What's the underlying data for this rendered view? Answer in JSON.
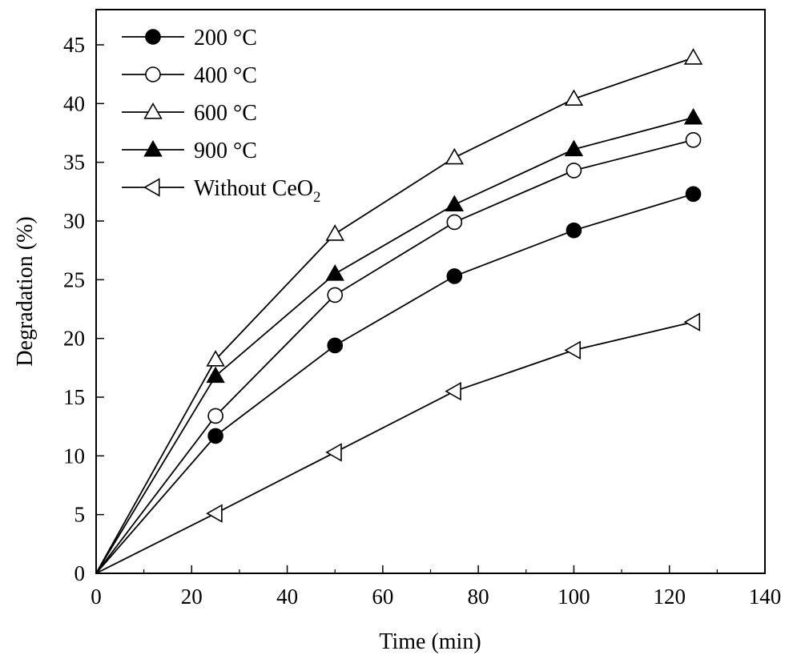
{
  "chart_data": {
    "type": "line",
    "xlabel": "Time (min)",
    "ylabel": "Degradation (%)",
    "xlim": [
      0,
      140
    ],
    "ylim": [
      0,
      48
    ],
    "x_ticks": [
      "0",
      "20",
      "40",
      "60",
      "80",
      "100",
      "120",
      "140"
    ],
    "y_ticks": [
      "0",
      "5",
      "10",
      "15",
      "20",
      "25",
      "30",
      "35",
      "40",
      "45"
    ],
    "grid": false,
    "legend_position": "top-left",
    "x": [
      0,
      25,
      50,
      75,
      100,
      125
    ],
    "series": [
      {
        "name": "200 °C",
        "marker": "circle-filled",
        "values": [
          0,
          11.7,
          19.4,
          25.3,
          29.2,
          32.3
        ]
      },
      {
        "name": "400 °C",
        "marker": "circle-open",
        "values": [
          0,
          13.4,
          23.7,
          29.9,
          34.3,
          36.9
        ]
      },
      {
        "name": "600 °C",
        "marker": "triangle-up-open",
        "values": [
          0,
          18.2,
          28.9,
          35.4,
          40.4,
          43.9
        ]
      },
      {
        "name": "900 °C",
        "marker": "triangle-up-filled",
        "values": [
          0,
          16.8,
          25.5,
          31.4,
          36.1,
          38.8
        ]
      },
      {
        "name": "Without CeO2",
        "name_main": "Without CeO",
        "name_sub": "2",
        "marker": "triangle-left-open",
        "values": [
          0,
          5.1,
          10.3,
          15.5,
          19.0,
          21.4
        ]
      }
    ]
  }
}
